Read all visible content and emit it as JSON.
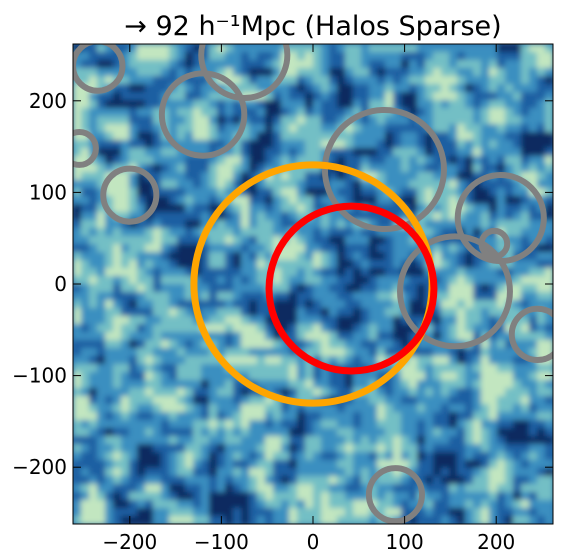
{
  "chart_data": {
    "type": "heatmap",
    "title": "→ 92 h⁻¹Mpc (Halos Sparse)",
    "xlabel": "",
    "ylabel": "",
    "xlim": [
      -262,
      262
    ],
    "ylim": [
      -262,
      262
    ],
    "xticks": [
      -200,
      -100,
      0,
      100,
      200
    ],
    "yticks": [
      -200,
      -100,
      0,
      100,
      200
    ],
    "xtick_labels": [
      "−200",
      "−100",
      "0",
      "100",
      "200"
    ],
    "ytick_labels": [
      "−200",
      "−100",
      "0",
      "100",
      "200"
    ],
    "grid": false,
    "colormap": [
      "#0b2a60",
      "#1d5fa2",
      "#3a8fc0",
      "#73bfc5",
      "#c2e6c0"
    ],
    "circles": [
      {
        "color": "#ffa500",
        "cx": 0,
        "cy": 0,
        "r": 130
      },
      {
        "color": "#ff0000",
        "cx": 42,
        "cy": -5,
        "r": 90
      },
      {
        "color": "#808080",
        "cx": -235,
        "cy": 238,
        "r": 27
      },
      {
        "color": "#808080",
        "cx": -75,
        "cy": 250,
        "r": 47
      },
      {
        "color": "#808080",
        "cx": -120,
        "cy": 185,
        "r": 45
      },
      {
        "color": "#808080",
        "cx": 78,
        "cy": 125,
        "r": 65
      },
      {
        "color": "#808080",
        "cx": -255,
        "cy": 148,
        "r": 18
      },
      {
        "color": "#808080",
        "cx": -200,
        "cy": 97,
        "r": 29
      },
      {
        "color": "#808080",
        "cx": 205,
        "cy": 72,
        "r": 47
      },
      {
        "color": "#808080",
        "cx": 198,
        "cy": 44,
        "r": 14
      },
      {
        "color": "#808080",
        "cx": 155,
        "cy": -8,
        "r": 60
      },
      {
        "color": "#808080",
        "cx": 245,
        "cy": -55,
        "r": 28
      },
      {
        "color": "#808080",
        "cx": 90,
        "cy": -230,
        "r": 29
      }
    ]
  }
}
